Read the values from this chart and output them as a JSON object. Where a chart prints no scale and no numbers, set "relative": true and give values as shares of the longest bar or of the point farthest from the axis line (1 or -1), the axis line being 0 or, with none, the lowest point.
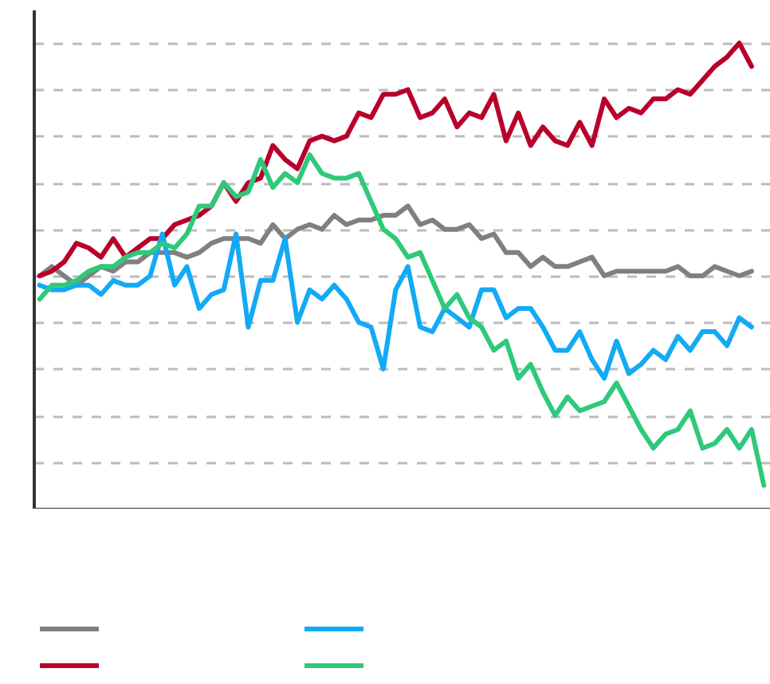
{
  "chart_data": {
    "type": "line",
    "relative": true,
    "grid": "y",
    "tick_labels": false,
    "line_style": "solid",
    "marker": "none",
    "categories": [
      null,
      null,
      null,
      null,
      null,
      null,
      null,
      null,
      null,
      null,
      null,
      null,
      null,
      null,
      null,
      null,
      null,
      null,
      null,
      null,
      null,
      null,
      null,
      null,
      null,
      null,
      null,
      null,
      null,
      null,
      null,
      null,
      null,
      null,
      null,
      null,
      null,
      null,
      null,
      null,
      null,
      null,
      null,
      null,
      null,
      null,
      null,
      null,
      null,
      null,
      null,
      null,
      null,
      null,
      null,
      null,
      null,
      null,
      null,
      null
    ],
    "series": [
      {
        "color": "#808080",
        "values": [
          0.5,
          0.52,
          0.5,
          0.48,
          0.5,
          0.52,
          0.51,
          0.53,
          0.53,
          0.55,
          0.55,
          0.55,
          0.54,
          0.55,
          0.57,
          0.58,
          0.58,
          0.58,
          0.57,
          0.61,
          0.58,
          0.6,
          0.61,
          0.6,
          0.63,
          0.61,
          0.62,
          0.62,
          0.63,
          0.63,
          0.65,
          0.61,
          0.62,
          0.6,
          0.6,
          0.61,
          0.58,
          0.59,
          0.55,
          0.55,
          0.52,
          0.54,
          0.52,
          0.52,
          0.53,
          0.54,
          0.5,
          0.51,
          0.51,
          0.51,
          0.51,
          0.51,
          0.52,
          0.5,
          0.5,
          0.52,
          0.51,
          0.5,
          0.51,
          null
        ]
      },
      {
        "color": "#b8002a",
        "values": [
          0.5,
          0.51,
          0.53,
          0.57,
          0.56,
          0.54,
          0.58,
          0.54,
          0.56,
          0.58,
          0.58,
          0.61,
          0.62,
          0.63,
          0.65,
          0.7,
          0.66,
          0.7,
          0.71,
          0.78,
          0.75,
          0.73,
          0.79,
          0.8,
          0.79,
          0.8,
          0.85,
          0.84,
          0.89,
          0.89,
          0.9,
          0.84,
          0.85,
          0.88,
          0.82,
          0.85,
          0.84,
          0.89,
          0.79,
          0.85,
          0.78,
          0.82,
          0.79,
          0.78,
          0.83,
          0.78,
          0.88,
          0.84,
          0.86,
          0.85,
          0.88,
          0.88,
          0.9,
          0.89,
          0.92,
          0.95,
          0.97,
          1,
          0.95,
          null
        ]
      },
      {
        "color": "#12aaf5",
        "values": [
          0.48,
          0.47,
          0.47,
          0.48,
          0.48,
          0.46,
          0.49,
          0.48,
          0.48,
          0.5,
          0.59,
          0.48,
          0.52,
          0.43,
          0.46,
          0.47,
          0.59,
          0.39,
          0.49,
          0.49,
          0.58,
          0.4,
          0.47,
          0.45,
          0.48,
          0.45,
          0.4,
          0.39,
          0.3,
          0.47,
          0.52,
          0.39,
          0.38,
          0.43,
          0.41,
          0.39,
          0.47,
          0.47,
          0.41,
          0.43,
          0.43,
          0.39,
          0.34,
          0.34,
          0.38,
          0.32,
          0.28,
          0.36,
          0.29,
          0.31,
          0.34,
          0.32,
          0.37,
          0.34,
          0.38,
          0.38,
          0.35,
          0.41,
          0.39,
          null
        ]
      },
      {
        "color": "#2ec97a",
        "values": [
          0.45,
          0.48,
          0.48,
          0.49,
          0.51,
          0.52,
          0.52,
          0.54,
          0.55,
          0.55,
          0.57,
          0.56,
          0.59,
          0.65,
          0.65,
          0.7,
          0.67,
          0.68,
          0.75,
          0.69,
          0.72,
          0.7,
          0.76,
          0.72,
          0.71,
          0.71,
          0.72,
          0.66,
          0.6,
          0.58,
          0.54,
          0.55,
          0.49,
          0.43,
          0.46,
          0.41,
          0.39,
          0.34,
          0.36,
          0.28,
          0.31,
          0.25,
          0.2,
          0.24,
          0.21,
          0.22,
          0.23,
          0.27,
          0.22,
          0.17,
          0.13,
          0.16,
          0.17,
          0.21,
          0.13,
          0.14,
          0.17,
          0.13,
          0.17,
          0.05
        ]
      }
    ]
  }
}
